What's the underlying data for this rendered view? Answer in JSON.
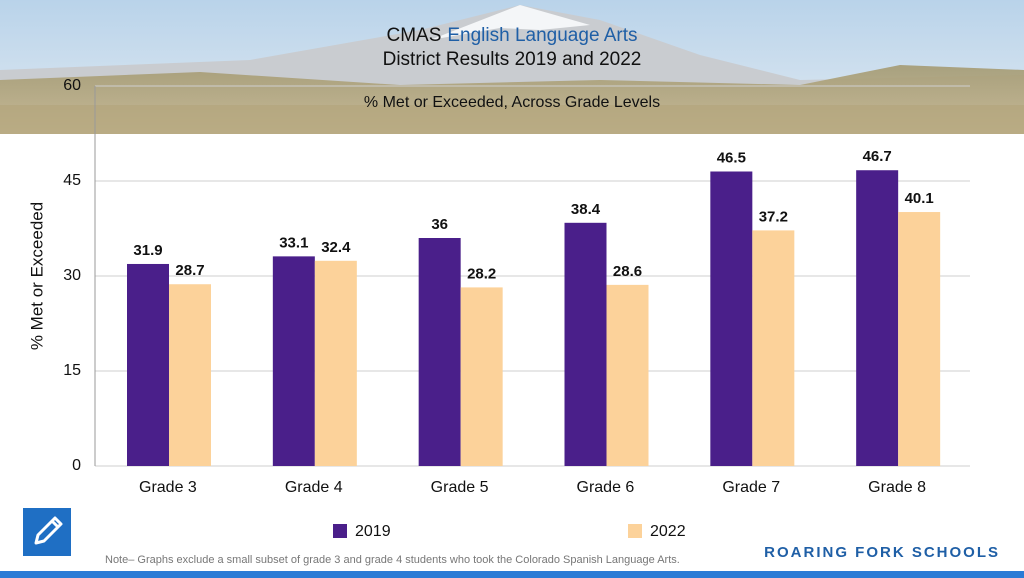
{
  "chart_data": {
    "type": "bar",
    "title": [
      "CMAS",
      "English Language Arts"
    ],
    "subtitle": "District Results 2019 and 2022",
    "plot_title": "% Met or Exceeded, Across Grade Levels",
    "ylabel": "% Met or Exceeded",
    "categories": [
      "Grade 3",
      "Grade 4",
      "Grade 5",
      "Grade 6",
      "Grade 7",
      "Grade 8"
    ],
    "series": [
      {
        "name": "2019",
        "color": "#4a1f8a",
        "values": [
          31.9,
          33.1,
          36,
          38.4,
          46.5,
          46.7
        ]
      },
      {
        "name": "2022",
        "color": "#fcd29a",
        "values": [
          28.7,
          32.4,
          28.2,
          28.6,
          37.2,
          40.1
        ]
      }
    ],
    "ylim": [
      0,
      60
    ],
    "yticks": [
      0,
      15,
      30,
      45,
      60
    ],
    "grid": true,
    "note": "Note– Graphs exclude a small subset of grade 3 and grade 4 students who took the Colorado Spanish Language Arts.",
    "brand": "ROARING FORK SCHOOLS"
  }
}
